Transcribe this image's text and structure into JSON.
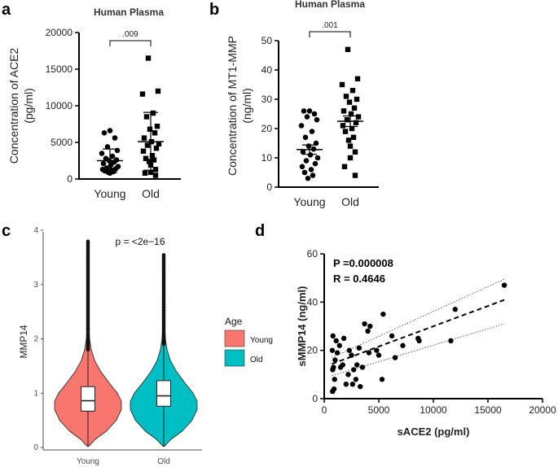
{
  "colors": {
    "young_fill": "#F8766D",
    "old_fill": "#00BFC4",
    "ink": "#000000"
  },
  "chart_data": [
    {
      "panel": "a",
      "type": "scatter",
      "title": "Human Plasma",
      "ylabel_line1": "Concentration of ACE2",
      "ylabel_line2": "(pg/ml)",
      "categories": [
        "Young",
        "Old"
      ],
      "ylim": [
        0,
        20000
      ],
      "yticks": [
        "0",
        "5000",
        "10000",
        "15000",
        "20000"
      ],
      "ytick_values": [
        0,
        5000,
        10000,
        15000,
        20000
      ],
      "significance": ".009",
      "series": [
        {
          "name": "Young",
          "mean": 2500,
          "sd_low": 900,
          "sd_high": 4100,
          "values": [
            6600,
            6300,
            5600,
            4400,
            3900,
            3500,
            3100,
            2800,
            2600,
            2500,
            2300,
            2100,
            1900,
            1700,
            1500,
            1400,
            1300,
            1200,
            1100,
            1000,
            900,
            800
          ]
        },
        {
          "name": "Old",
          "mean": 5100,
          "sd_low": 1200,
          "sd_high": 9100,
          "values": [
            16500,
            12000,
            11600,
            9000,
            8500,
            7200,
            6800,
            6300,
            5600,
            5100,
            4800,
            4600,
            4200,
            3800,
            3200,
            2800,
            2600,
            2400,
            1900,
            1300,
            900,
            800,
            500
          ]
        }
      ]
    },
    {
      "panel": "b",
      "type": "scatter",
      "title": "Human Plasma",
      "ylabel_line1": "Concentration of MT1-MMP",
      "ylabel_line2": "(ng/ml)",
      "categories": [
        "Young",
        "Old"
      ],
      "ylim": [
        0,
        50
      ],
      "yticks": [
        "0",
        "10",
        "20",
        "30",
        "40",
        "50"
      ],
      "ytick_values": [
        0,
        10,
        20,
        30,
        40,
        50
      ],
      "significance": ".001",
      "series": [
        {
          "name": "Young",
          "mean": 12.8,
          "sem": 1.6,
          "values": [
            26,
            26,
            25,
            24,
            23,
            21,
            19,
            17,
            15,
            14,
            13,
            12,
            11,
            10,
            9,
            8,
            7,
            6,
            5,
            4,
            3
          ]
        },
        {
          "name": "Old",
          "mean": 22.5,
          "sem": 1.8,
          "values": [
            47,
            37,
            35,
            33,
            31,
            30,
            29,
            27,
            26,
            25,
            24,
            23,
            22,
            21,
            20,
            19,
            17,
            16,
            14,
            12,
            10,
            7,
            4
          ]
        }
      ]
    },
    {
      "panel": "c",
      "type": "violin",
      "ylabel": "MMP14",
      "categories": [
        "Young",
        "Old"
      ],
      "ylim": [
        0,
        4
      ],
      "yticks": [
        "0",
        "1",
        "2",
        "3",
        "4"
      ],
      "ytick_values": [
        0,
        1,
        2,
        3,
        4
      ],
      "annotation": "p = <2e−16",
      "legend_title": "Age",
      "legend": [
        "Young",
        "Old"
      ],
      "box": [
        {
          "name": "Young",
          "q1": 0.67,
          "median": 0.86,
          "q3": 1.12,
          "whisker_low": 0.02,
          "whisker_high": 1.8,
          "outlier_max": 3.8
        },
        {
          "name": "Old",
          "q1": 0.76,
          "median": 0.95,
          "q3": 1.23,
          "whisker_low": 0.02,
          "whisker_high": 1.9,
          "outlier_max": 3.55
        }
      ]
    },
    {
      "panel": "d",
      "type": "scatter",
      "xlabel": "sACE2 (pg/ml)",
      "ylabel": "sMMP14 (ng/ml)",
      "xlim": [
        0,
        20000
      ],
      "ylim": [
        0,
        60
      ],
      "xticks": [
        "0",
        "5000",
        "10000",
        "15000",
        "20000"
      ],
      "xtick_values": [
        0,
        5000,
        10000,
        15000,
        20000
      ],
      "yticks": [
        "0",
        "20",
        "40",
        "60"
      ],
      "ytick_values": [
        0,
        20,
        40,
        60
      ],
      "stat_p": "P =0.000008",
      "stat_r": "R = 0.4646",
      "regression": {
        "intercept": 13.2,
        "slope": 0.00168,
        "x_from": 700,
        "x_to": 16500
      },
      "ci_upper": [
        [
          700,
          17.0
        ],
        [
          16500,
          49.5
        ]
      ],
      "ci_lower": [
        [
          700,
          9.5
        ],
        [
          16500,
          31.0
        ]
      ],
      "points": [
        [
          16500,
          47
        ],
        [
          12000,
          37
        ],
        [
          11600,
          24
        ],
        [
          8700,
          24
        ],
        [
          8600,
          25
        ],
        [
          7200,
          22
        ],
        [
          6500,
          17
        ],
        [
          6200,
          26
        ],
        [
          5400,
          35
        ],
        [
          5300,
          8
        ],
        [
          5000,
          18
        ],
        [
          4800,
          20
        ],
        [
          4200,
          30
        ],
        [
          4000,
          28
        ],
        [
          4100,
          19
        ],
        [
          3700,
          31
        ],
        [
          3500,
          13
        ],
        [
          3300,
          5
        ],
        [
          3200,
          21
        ],
        [
          3000,
          14
        ],
        [
          2900,
          8
        ],
        [
          2700,
          12
        ],
        [
          2600,
          6
        ],
        [
          2500,
          18
        ],
        [
          2300,
          20
        ],
        [
          2200,
          10
        ],
        [
          2000,
          6
        ],
        [
          1800,
          25
        ],
        [
          1700,
          14
        ],
        [
          1500,
          13
        ],
        [
          1400,
          22
        ],
        [
          1200,
          19
        ],
        [
          1100,
          24
        ],
        [
          1000,
          16
        ],
        [
          950,
          8
        ],
        [
          900,
          4
        ],
        [
          850,
          13
        ],
        [
          800,
          26
        ],
        [
          780,
          12
        ],
        [
          760,
          3
        ],
        [
          740,
          20
        ]
      ]
    }
  ],
  "panels": {
    "a": "a",
    "b": "b",
    "c": "c",
    "d": "d"
  }
}
